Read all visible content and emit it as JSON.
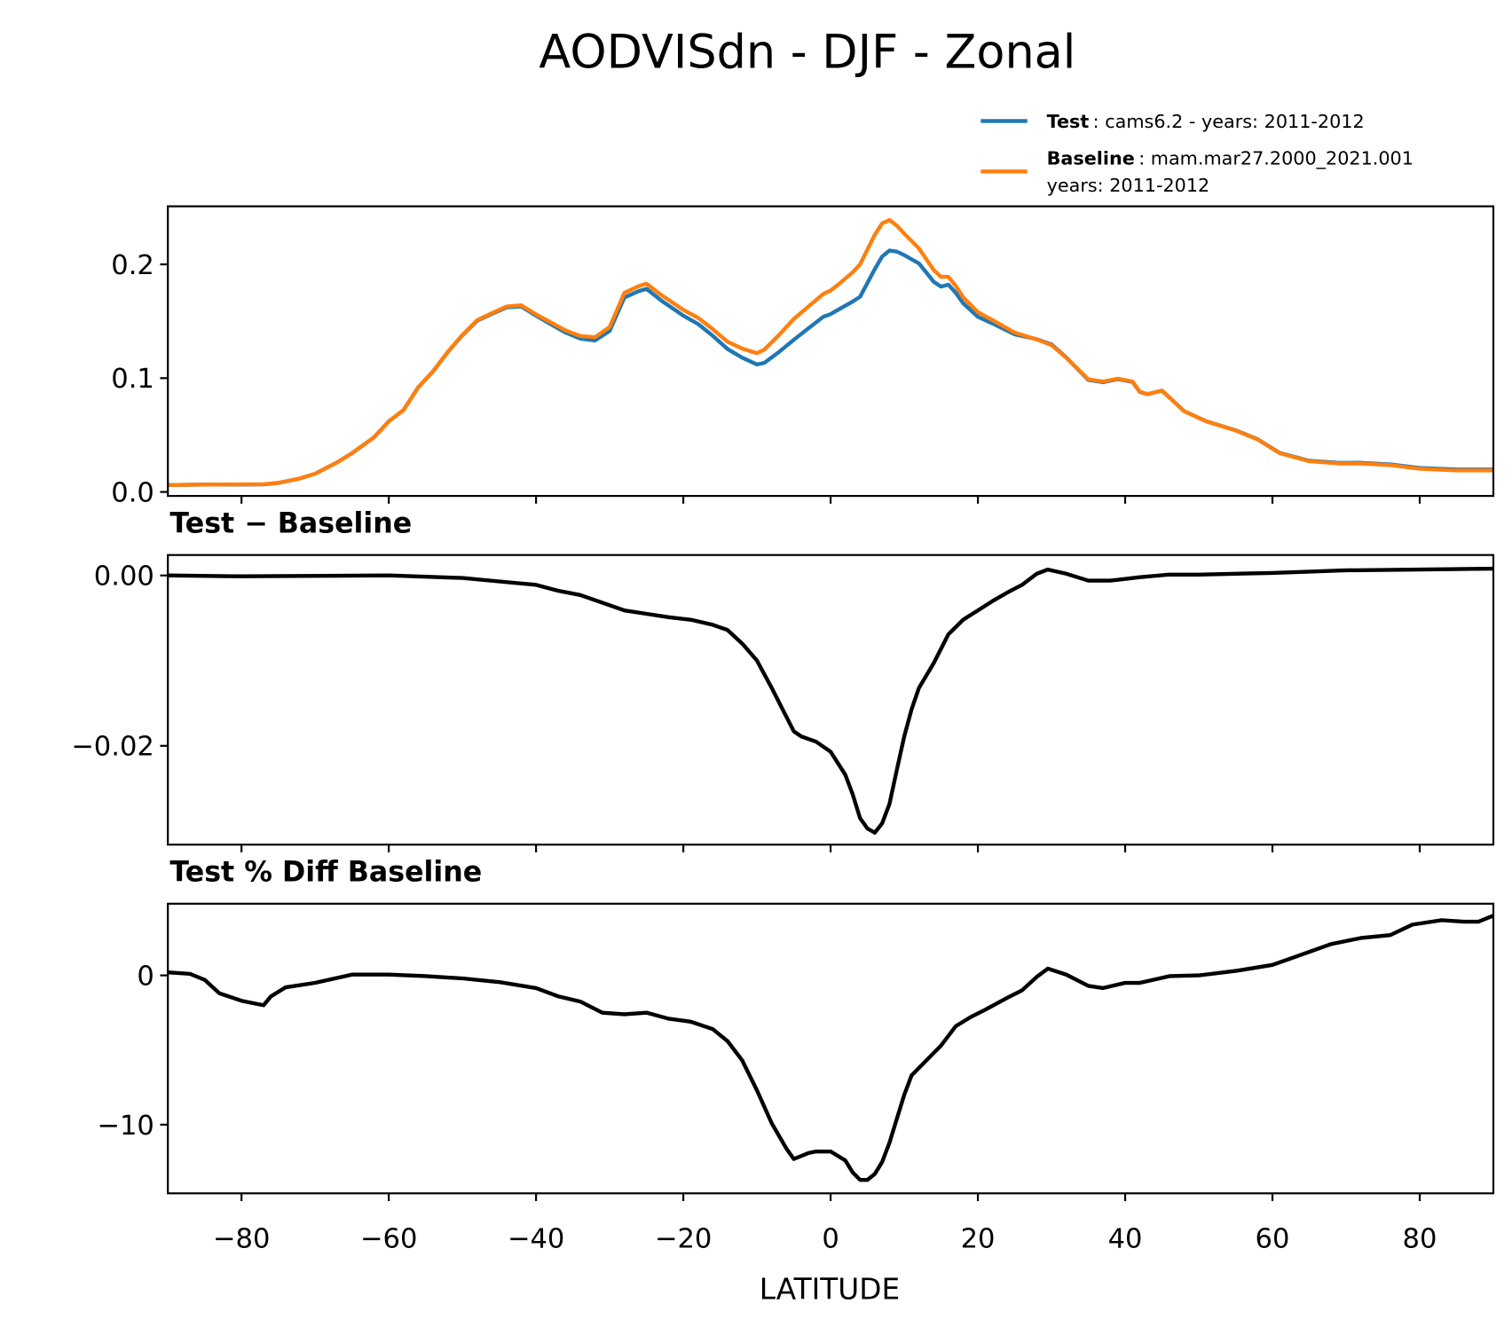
{
  "title": "AODVISdn - DJF - Zonal",
  "colors": {
    "test": "#1f77b4",
    "baseline": "#ff7f0e",
    "diff": "#000000"
  },
  "legend": {
    "placement": "top-right, above top panel",
    "test_bold": "Test",
    "test_text": ": cams6.2 - years: 2011-2012",
    "baseline_bold": "Baseline",
    "baseline_text": ": mam.mar27.2000_2021.001",
    "baseline_text2": "years: 2011-2012"
  },
  "chart_data": [
    {
      "type": "line",
      "title": "",
      "xlabel": "LATITUDE",
      "xlim": [
        -90,
        90
      ],
      "ylim": [
        -0.0035,
        0.251
      ],
      "grid": false,
      "xticks": [
        "−80",
        "−60",
        "−40",
        "−20",
        "0",
        "20",
        "40",
        "60",
        "80"
      ],
      "xtick_values": [
        -80,
        -60,
        -40,
        -20,
        0,
        20,
        40,
        60,
        80
      ],
      "yticks": [
        "0.0",
        "0.1",
        "0.2"
      ],
      "ytick_values": [
        0,
        0.1,
        0.2
      ],
      "x": [
        -90,
        -85,
        -80,
        -77,
        -75,
        -72,
        -70,
        -67,
        -65,
        -62,
        -60,
        -58,
        -56,
        -54,
        -52,
        -50,
        -48,
        -46,
        -44,
        -42,
        -40,
        -38,
        -36,
        -34,
        -32,
        -30,
        -29,
        -28,
        -26,
        -25,
        -23,
        -20,
        -18,
        -16,
        -14,
        -12,
        -10,
        -9,
        -7,
        -5,
        -3,
        -1,
        0,
        1,
        3,
        4,
        6,
        7,
        8,
        9,
        10,
        12,
        14,
        15,
        16,
        17,
        18,
        20,
        22,
        25,
        28,
        30,
        32,
        35,
        37,
        39,
        41,
        42,
        43,
        45,
        46,
        48,
        51,
        55,
        58,
        61,
        65,
        69,
        72,
        76,
        80,
        85,
        90
      ],
      "series": [
        {
          "name": "Test",
          "color": "#1f77b4",
          "values": [
            0.006,
            0.0065,
            0.0065,
            0.0066,
            0.0079,
            0.012,
            0.016,
            0.026,
            0.034,
            0.048,
            0.062,
            0.0719,
            0.0919,
            0.1058,
            0.1228,
            0.1377,
            0.1505,
            0.1564,
            0.1622,
            0.163,
            0.1549,
            0.1474,
            0.1401,
            0.1347,
            0.1331,
            0.1415,
            0.1563,
            0.1709,
            0.1766,
            0.1785,
            0.1682,
            0.1549,
            0.1476,
            0.1372,
            0.1256,
            0.118,
            0.112,
            0.1134,
            0.1231,
            0.1337,
            0.1438,
            0.1539,
            0.1563,
            0.16,
            0.1673,
            0.1715,
            0.1958,
            0.2069,
            0.2122,
            0.2112,
            0.2081,
            0.2008,
            0.1847,
            0.1804,
            0.1821,
            0.175,
            0.1658,
            0.1539,
            0.148,
            0.1385,
            0.1342,
            0.1296,
            0.1182,
            0.0984,
            0.0964,
            0.0991,
            0.0967,
            0.0878,
            0.0859,
            0.089,
            0.0831,
            0.0711,
            0.0621,
            0.0542,
            0.0463,
            0.0343,
            0.0274,
            0.0255,
            0.0256,
            0.0242,
            0.0211,
            0.0197,
            0.0197
          ]
        },
        {
          "name": "Baseline",
          "color": "#ff7f0e",
          "values": [
            0.006,
            0.0065,
            0.0066,
            0.0067,
            0.008,
            0.012,
            0.016,
            0.026,
            0.034,
            0.048,
            0.062,
            0.072,
            0.092,
            0.106,
            0.123,
            0.138,
            0.151,
            0.157,
            0.163,
            0.164,
            0.156,
            0.149,
            0.142,
            0.137,
            0.136,
            0.145,
            0.16,
            0.175,
            0.181,
            0.183,
            0.173,
            0.16,
            0.153,
            0.143,
            0.132,
            0.126,
            0.122,
            0.125,
            0.138,
            0.152,
            0.163,
            0.174,
            0.177,
            0.182,
            0.193,
            0.2,
            0.226,
            0.236,
            0.239,
            0.234,
            0.227,
            0.214,
            0.195,
            0.189,
            0.189,
            0.181,
            0.171,
            0.158,
            0.151,
            0.14,
            0.134,
            0.129,
            0.118,
            0.099,
            0.097,
            0.0996,
            0.097,
            0.088,
            0.086,
            0.089,
            0.083,
            0.071,
            0.062,
            0.054,
            0.046,
            0.034,
            0.027,
            0.025,
            0.025,
            0.0236,
            0.0204,
            0.0189,
            0.0189
          ]
        }
      ]
    },
    {
      "type": "line",
      "title": "Test − Baseline",
      "xlim": [
        -90,
        90
      ],
      "ylim": [
        -0.0316,
        0.0024
      ],
      "grid": false,
      "yticks": [
        "0.00",
        "−0.02"
      ],
      "ytick_values": [
        0,
        -0.02
      ],
      "x": [
        -90,
        -80,
        -60,
        -50,
        -45,
        -40,
        -37,
        -34,
        -31,
        -28,
        -25,
        -22,
        -19,
        -16,
        -14,
        -12,
        -10,
        -8,
        -6,
        -5,
        -4,
        -2,
        0,
        2,
        3,
        4,
        5,
        6,
        7,
        8,
        9,
        10,
        11,
        12,
        14,
        16,
        18,
        20,
        22,
        24,
        26,
        28,
        29.5,
        32,
        35,
        38,
        42,
        46,
        50,
        60,
        70,
        80,
        90
      ],
      "series": [
        {
          "color": "#000000",
          "values": [
            0,
            -0.0001,
            0,
            -0.0003,
            -0.0007,
            -0.0011,
            -0.0018,
            -0.0023,
            -0.0032,
            -0.0041,
            -0.0045,
            -0.0049,
            -0.0052,
            -0.0058,
            -0.0064,
            -0.008,
            -0.01,
            -0.0132,
            -0.0166,
            -0.0183,
            -0.0189,
            -0.0195,
            -0.0207,
            -0.0234,
            -0.0257,
            -0.0285,
            -0.0297,
            -0.0302,
            -0.0291,
            -0.0268,
            -0.0228,
            -0.0189,
            -0.0157,
            -0.0132,
            -0.0103,
            -0.0069,
            -0.0052,
            -0.0041,
            -0.003,
            -0.002,
            -0.0011,
            0.0002,
            0.0007,
            0.0002,
            -0.0006,
            -0.0006,
            -0.0002,
            0.0001,
            0.0001,
            0.0003,
            0.0006,
            0.0007,
            0.0008
          ]
        }
      ]
    },
    {
      "type": "line",
      "title": "Test % Diff Baseline",
      "xlabel": "LATITUDE",
      "xlim": [
        -90,
        90
      ],
      "ylim": [
        -14.6,
        4.8
      ],
      "grid": false,
      "yticks": [
        "0",
        "−10"
      ],
      "ytick_values": [
        0,
        -10
      ],
      "x": [
        -90,
        -87,
        -85,
        -83,
        -80,
        -78,
        -77,
        -76,
        -74,
        -70,
        -65,
        -60,
        -55,
        -50,
        -45,
        -40,
        -37,
        -34,
        -31,
        -28,
        -25,
        -22,
        -19,
        -16,
        -14,
        -12,
        -10,
        -8,
        -6,
        -5,
        -3,
        -2,
        0,
        2,
        3,
        4,
        5,
        6,
        7,
        8,
        9,
        10,
        11,
        13,
        15,
        17,
        19,
        21,
        24,
        26,
        28,
        29.5,
        32,
        35,
        37,
        40,
        42,
        46,
        50,
        55,
        60,
        64,
        68,
        72,
        76,
        79,
        83,
        86,
        88,
        90
      ],
      "series": [
        {
          "color": "#000000",
          "values": [
            0.2,
            0.1,
            -0.3,
            -1.2,
            -1.7,
            -1.9,
            -2.0,
            -1.4,
            -0.8,
            -0.5,
            0.05,
            0.05,
            -0.05,
            -0.2,
            -0.45,
            -0.85,
            -1.4,
            -1.75,
            -2.5,
            -2.6,
            -2.5,
            -2.9,
            -3.1,
            -3.6,
            -4.4,
            -5.7,
            -7.7,
            -9.9,
            -11.6,
            -12.3,
            -11.9,
            -11.8,
            -11.8,
            -12.4,
            -13.2,
            -13.7,
            -13.7,
            -13.3,
            -12.5,
            -11.2,
            -9.6,
            -8.0,
            -6.7,
            -5.7,
            -4.7,
            -3.4,
            -2.8,
            -2.3,
            -1.5,
            -1.0,
            -0.1,
            0.45,
            0.05,
            -0.7,
            -0.85,
            -0.5,
            -0.5,
            -0.05,
            0,
            0.3,
            0.7,
            1.4,
            2.1,
            2.5,
            2.7,
            3.4,
            3.7,
            3.6,
            3.6,
            4.0
          ]
        }
      ]
    }
  ]
}
